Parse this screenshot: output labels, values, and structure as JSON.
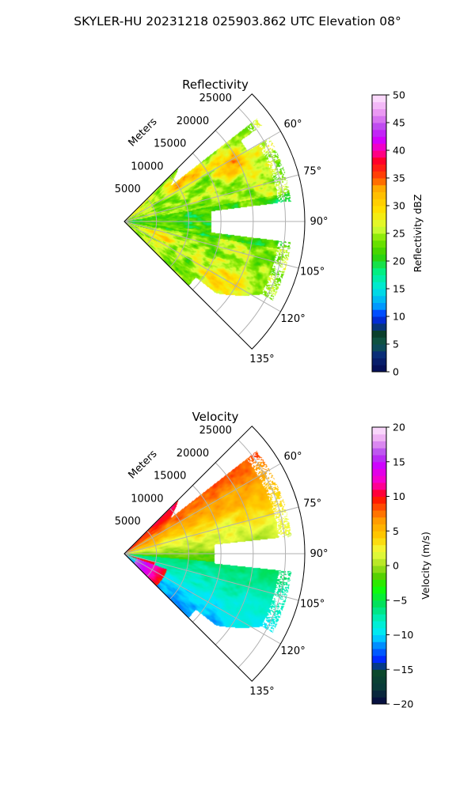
{
  "figure": {
    "suptitle": "SKYLER-HU  20231218  025903.862 UTC Elevation 08°"
  },
  "chart_data": [
    {
      "type": "heatmap",
      "projection": "polar-sector",
      "title": "Reflectivity",
      "range_label": "Meters",
      "range_ticks": [
        "5000",
        "10000",
        "15000",
        "20000",
        "25000"
      ],
      "range_values": [
        5000,
        10000,
        15000,
        20000,
        25000
      ],
      "range_max": 28000,
      "azimuth_ticks": [
        "60°",
        "75°",
        "90°",
        "105°",
        "120°",
        "135°"
      ],
      "azimuth_values": [
        60,
        75,
        90,
        105,
        120,
        135
      ],
      "azimuth_range": [
        45,
        135
      ],
      "grid": true,
      "colorbar": {
        "label": "Reflectivity dBZ",
        "range": [
          0,
          50
        ],
        "ticks": [
          "0",
          "5",
          "10",
          "15",
          "20",
          "25",
          "30",
          "35",
          "40",
          "45",
          "50"
        ],
        "tick_values": [
          0,
          5,
          10,
          15,
          20,
          25,
          30,
          35,
          40,
          45,
          50
        ],
        "colormap": "pyart_HomeyerRainbow"
      },
      "field_summary": {
        "dominant_range": [
          18,
          32
        ],
        "max_approx": 40,
        "cores": [
          {
            "azimuth": 63,
            "range_m": 19000,
            "value": 38
          },
          {
            "azimuth": 55,
            "range_m": 12000,
            "value": 36
          },
          {
            "azimuth": 110,
            "range_m": 6000,
            "value": 33
          },
          {
            "azimuth": 120,
            "range_m": 18000,
            "value": 32
          }
        ]
      }
    },
    {
      "type": "heatmap",
      "projection": "polar-sector",
      "title": "Velocity",
      "range_label": "Meters",
      "range_ticks": [
        "5000",
        "10000",
        "15000",
        "20000",
        "25000"
      ],
      "range_values": [
        5000,
        10000,
        15000,
        20000,
        25000
      ],
      "range_max": 28000,
      "azimuth_ticks": [
        "60°",
        "75°",
        "90°",
        "105°",
        "120°",
        "135°"
      ],
      "azimuth_values": [
        60,
        75,
        90,
        105,
        120,
        135
      ],
      "azimuth_range": [
        45,
        135
      ],
      "grid": true,
      "colorbar": {
        "label": "Velocity (m/s)",
        "range": [
          -20,
          20
        ],
        "ticks": [
          "−20",
          "−15",
          "−10",
          "−5",
          "0",
          "5",
          "10",
          "15",
          "20"
        ],
        "tick_values": [
          -20,
          -15,
          -10,
          -5,
          0,
          5,
          10,
          15,
          20
        ],
        "colormap": "pyart_balance"
      },
      "field_summary": {
        "north_sector_values": [
          8,
          12
        ],
        "east_sector_values": [
          0,
          5
        ],
        "south_sector_values": [
          -12,
          -4
        ],
        "folding_near_radar": [
          15,
          20
        ]
      }
    }
  ],
  "colors": {
    "grid": "#b0b0b0",
    "axis": "#000000"
  }
}
